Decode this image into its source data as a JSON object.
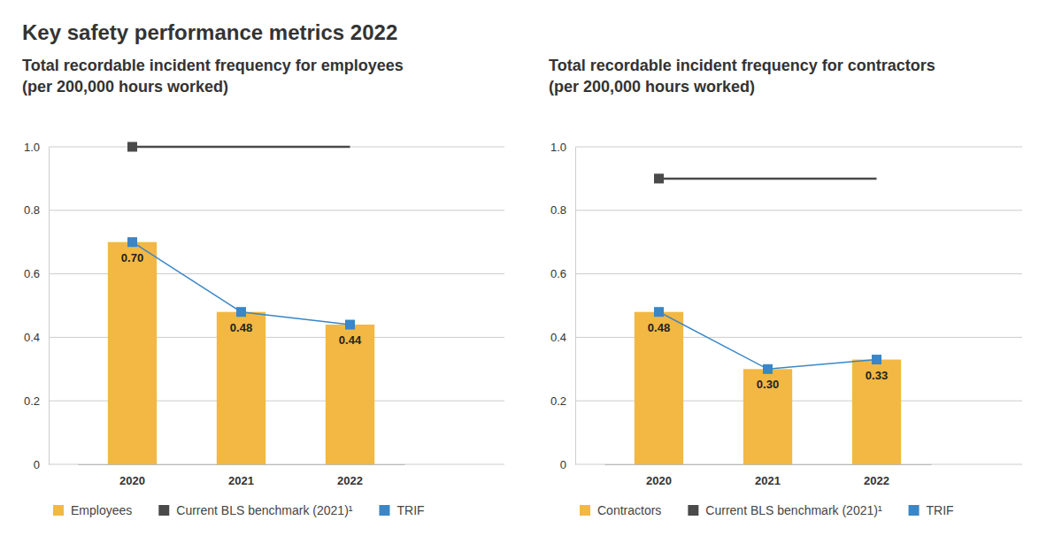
{
  "title": "Key safety performance metrics 2022",
  "chart_data": [
    {
      "type": "bar",
      "title": "Total recordable incident frequency for employees (per 200,000 hours worked)",
      "categories": [
        "2020",
        "2021",
        "2022"
      ],
      "series": [
        {
          "name": "Employees",
          "type": "bar",
          "color": "#f2b843",
          "values": [
            0.7,
            0.48,
            0.44
          ],
          "value_labels": [
            "0.70",
            "0.48",
            "0.44"
          ]
        },
        {
          "name": "Current BLS benchmark (2021)¹",
          "type": "line",
          "color": "#4a4a4a",
          "line_style": "solid",
          "values": [
            1.0,
            1.0,
            1.0
          ]
        },
        {
          "name": "TRIF",
          "type": "line",
          "color": "#3a86c6",
          "marker": "square",
          "line_style": "solid",
          "values": [
            0.7,
            0.48,
            0.44
          ]
        }
      ],
      "ylim": [
        0,
        1.0
      ],
      "yticks": [
        0,
        0.2,
        0.4,
        0.6,
        0.8,
        {
          "value": 1.0,
          "label": "1.0"
        }
      ],
      "grid": true,
      "legend": "bottom",
      "data_labels": true
    },
    {
      "type": "bar",
      "title": "Total recordable incident frequency for contractors (per 200,000 hours worked)",
      "categories": [
        "2020",
        "2021",
        "2022"
      ],
      "series": [
        {
          "name": "Contractors",
          "type": "bar",
          "color": "#f2b843",
          "values": [
            0.48,
            0.3,
            0.33
          ],
          "value_labels": [
            "0.48",
            "0.30",
            "0.33"
          ]
        },
        {
          "name": "Current BLS benchmark (2021)¹",
          "type": "line",
          "color": "#4a4a4a",
          "line_style": "solid",
          "values": [
            0.9,
            0.9,
            0.9
          ]
        },
        {
          "name": "TRIF",
          "type": "line",
          "color": "#3a86c6",
          "marker": "square",
          "line_style": "solid",
          "values": [
            0.48,
            0.3,
            0.33
          ]
        }
      ],
      "ylim": [
        0,
        1.0
      ],
      "yticks": [
        0,
        0.2,
        0.4,
        0.6,
        0.8,
        {
          "value": 1.0,
          "label": "1.0"
        }
      ],
      "grid": true,
      "legend": "bottom",
      "data_labels": true
    }
  ]
}
